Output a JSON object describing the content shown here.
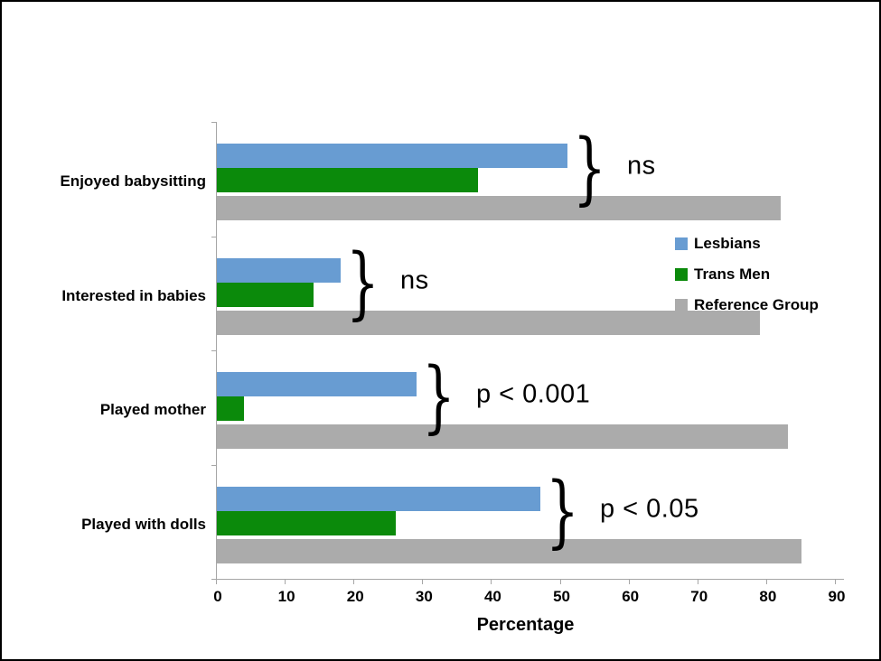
{
  "chart_data": {
    "type": "bar",
    "orientation": "horizontal",
    "title": "",
    "xlabel": "Percentage",
    "xlim": [
      0,
      90
    ],
    "xticks": [
      0,
      10,
      20,
      30,
      40,
      50,
      60,
      70,
      80,
      90
    ],
    "grid": false,
    "legend_position": "inside-upper-right",
    "categories": [
      "Enjoyed babysitting",
      "Interested in babies",
      "Played mother",
      "Played with dolls"
    ],
    "series": [
      {
        "name": "Lesbians",
        "color": "#689CD2",
        "values": [
          51,
          18,
          29,
          47
        ]
      },
      {
        "name": "Trans Men",
        "color": "#0B8A0B",
        "values": [
          38,
          14,
          4,
          26
        ]
      },
      {
        "name": "Reference Group",
        "color": "#ABABAB",
        "values": [
          82,
          79,
          83,
          85
        ]
      }
    ],
    "annotations": [
      {
        "label": "ns",
        "symbol": "}"
      },
      {
        "label": "ns",
        "symbol": "}"
      },
      {
        "label": "p < 0.001",
        "symbol": "}"
      },
      {
        "label": "p < 0.05",
        "symbol": "}"
      }
    ],
    "axis_color": "#A6A6A6",
    "background_color": "#FFFFFF",
    "border_color": "#000000"
  }
}
